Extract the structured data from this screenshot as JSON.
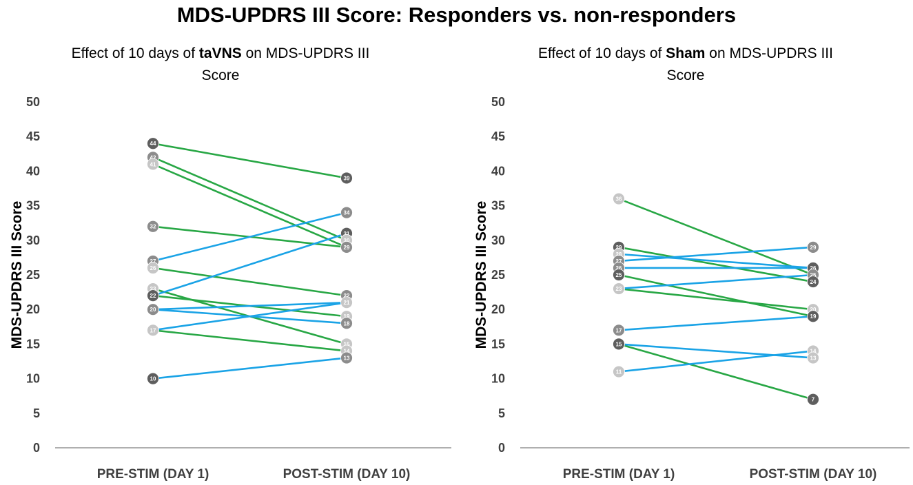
{
  "title": "MDS-UPDRS III Score: Responders vs. non-responders",
  "colors": {
    "responder": "#28a745",
    "non_responder": "#1aa3e6",
    "marker_dark": "#5e5e5e",
    "marker_mid": "#8c8c8c",
    "marker_light": "#c6c6c6",
    "axis": "#404040"
  },
  "chart_data": [
    {
      "type": "line",
      "title_parts": [
        {
          "text": "Effect of 10 days of ",
          "bold": false
        },
        {
          "text": "taVNS",
          "bold": true
        },
        {
          "text": " on MDS-UPDRS III",
          "bold": false
        }
      ],
      "title_line2": "Score",
      "categories": [
        "PRE-STIM (DAY 1)",
        "POST-STIM (DAY 10)"
      ],
      "ylabel": "MDS-UPDRS III Score",
      "ylim": [
        0,
        50
      ],
      "yticks": [
        0,
        5,
        10,
        15,
        20,
        25,
        30,
        35,
        40,
        45,
        50
      ],
      "legend": "none",
      "series": [
        {
          "values": [
            44,
            39
          ],
          "group": "responder"
        },
        {
          "values": [
            42,
            30
          ],
          "group": "responder"
        },
        {
          "values": [
            41,
            29
          ],
          "group": "responder"
        },
        {
          "values": [
            32,
            29
          ],
          "group": "responder"
        },
        {
          "values": [
            26,
            22
          ],
          "group": "responder"
        },
        {
          "values": [
            23,
            15
          ],
          "group": "responder"
        },
        {
          "values": [
            22,
            19
          ],
          "group": "responder"
        },
        {
          "values": [
            17,
            14
          ],
          "group": "responder"
        },
        {
          "values": [
            27,
            34
          ],
          "group": "non_responder"
        },
        {
          "values": [
            22,
            31
          ],
          "group": "non_responder"
        },
        {
          "values": [
            20,
            21
          ],
          "group": "non_responder"
        },
        {
          "values": [
            20,
            18
          ],
          "group": "non_responder"
        },
        {
          "values": [
            17,
            21
          ],
          "group": "non_responder"
        },
        {
          "values": [
            10,
            13
          ],
          "group": "non_responder"
        }
      ],
      "markers": [
        {
          "x": 0,
          "value": 44,
          "label": "44",
          "tone": "dark"
        },
        {
          "x": 0,
          "value": 42,
          "label": "42",
          "tone": "mid"
        },
        {
          "x": 0,
          "value": 41,
          "label": "41",
          "tone": "light"
        },
        {
          "x": 0,
          "value": 32,
          "label": "32",
          "tone": "mid"
        },
        {
          "x": 0,
          "value": 27,
          "label": "27",
          "tone": "mid"
        },
        {
          "x": 0,
          "value": 26,
          "label": "26",
          "tone": "light"
        },
        {
          "x": 0,
          "value": 23,
          "label": "23",
          "tone": "light"
        },
        {
          "x": 0,
          "value": 22,
          "label": "22",
          "tone": "dark"
        },
        {
          "x": 0,
          "value": 20,
          "label": "20",
          "tone": "mid"
        },
        {
          "x": 0,
          "value": 17,
          "label": "17",
          "tone": "light"
        },
        {
          "x": 0,
          "value": 10,
          "label": "10",
          "tone": "dark"
        },
        {
          "x": 1,
          "value": 39,
          "label": "39",
          "tone": "dark"
        },
        {
          "x": 1,
          "value": 34,
          "label": "34",
          "tone": "mid"
        },
        {
          "x": 1,
          "value": 31,
          "label": "31",
          "tone": "dark"
        },
        {
          "x": 1,
          "value": 30,
          "label": "30",
          "tone": "light"
        },
        {
          "x": 1,
          "value": 29,
          "label": "29",
          "tone": "mid"
        },
        {
          "x": 1,
          "value": 22,
          "label": "22",
          "tone": "mid"
        },
        {
          "x": 1,
          "value": 21,
          "label": "21",
          "tone": "light"
        },
        {
          "x": 1,
          "value": 19,
          "label": "19",
          "tone": "light"
        },
        {
          "x": 1,
          "value": 18,
          "label": "18",
          "tone": "mid"
        },
        {
          "x": 1,
          "value": 15,
          "label": "15",
          "tone": "light"
        },
        {
          "x": 1,
          "value": 14,
          "label": "14",
          "tone": "light"
        },
        {
          "x": 1,
          "value": 13,
          "label": "13",
          "tone": "mid"
        }
      ]
    },
    {
      "type": "line",
      "title_parts": [
        {
          "text": "Effect of 10 days of ",
          "bold": false
        },
        {
          "text": "Sham",
          "bold": true
        },
        {
          "text": " on MDS-UPDRS III",
          "bold": false
        }
      ],
      "title_line2": "Score",
      "categories": [
        "PRE-STIM (DAY 1)",
        "POST-STIM (DAY 10)"
      ],
      "ylabel": "MDS-UPDRS III Score",
      "ylim": [
        0,
        50
      ],
      "yticks": [
        0,
        5,
        10,
        15,
        20,
        25,
        30,
        35,
        40,
        45,
        50
      ],
      "legend": "none",
      "series": [
        {
          "values": [
            36,
            25
          ],
          "group": "responder"
        },
        {
          "values": [
            29,
            24
          ],
          "group": "responder"
        },
        {
          "values": [
            25,
            19
          ],
          "group": "responder"
        },
        {
          "values": [
            23,
            20
          ],
          "group": "responder"
        },
        {
          "values": [
            15,
            7
          ],
          "group": "responder"
        },
        {
          "values": [
            28,
            26
          ],
          "group": "non_responder"
        },
        {
          "values": [
            27,
            29
          ],
          "group": "non_responder"
        },
        {
          "values": [
            26,
            26
          ],
          "group": "non_responder"
        },
        {
          "values": [
            23,
            25
          ],
          "group": "non_responder"
        },
        {
          "values": [
            17,
            19
          ],
          "group": "non_responder"
        },
        {
          "values": [
            15,
            13
          ],
          "group": "non_responder"
        },
        {
          "values": [
            11,
            14
          ],
          "group": "non_responder"
        }
      ],
      "markers": [
        {
          "x": 0,
          "value": 36,
          "label": "36",
          "tone": "light"
        },
        {
          "x": 0,
          "value": 29,
          "label": "29",
          "tone": "dark"
        },
        {
          "x": 0,
          "value": 28,
          "label": "28",
          "tone": "light"
        },
        {
          "x": 0,
          "value": 27,
          "label": "27",
          "tone": "mid"
        },
        {
          "x": 0,
          "value": 26,
          "label": "26",
          "tone": "mid"
        },
        {
          "x": 0,
          "value": 25,
          "label": "25",
          "tone": "dark"
        },
        {
          "x": 0,
          "value": 23,
          "label": "23",
          "tone": "light"
        },
        {
          "x": 0,
          "value": 17,
          "label": "17",
          "tone": "mid"
        },
        {
          "x": 0,
          "value": 15,
          "label": "15",
          "tone": "dark"
        },
        {
          "x": 0,
          "value": 11,
          "label": "11",
          "tone": "light"
        },
        {
          "x": 1,
          "value": 29,
          "label": "29",
          "tone": "mid"
        },
        {
          "x": 1,
          "value": 26,
          "label": "26",
          "tone": "dark"
        },
        {
          "x": 1,
          "value": 25,
          "label": "25",
          "tone": "mid"
        },
        {
          "x": 1,
          "value": 24,
          "label": "24",
          "tone": "dark"
        },
        {
          "x": 1,
          "value": 20,
          "label": "20",
          "tone": "light"
        },
        {
          "x": 1,
          "value": 19,
          "label": "19",
          "tone": "dark"
        },
        {
          "x": 1,
          "value": 14,
          "label": "14",
          "tone": "light"
        },
        {
          "x": 1,
          "value": 13,
          "label": "13",
          "tone": "light"
        },
        {
          "x": 1,
          "value": 7,
          "label": "7",
          "tone": "dark"
        }
      ]
    }
  ]
}
